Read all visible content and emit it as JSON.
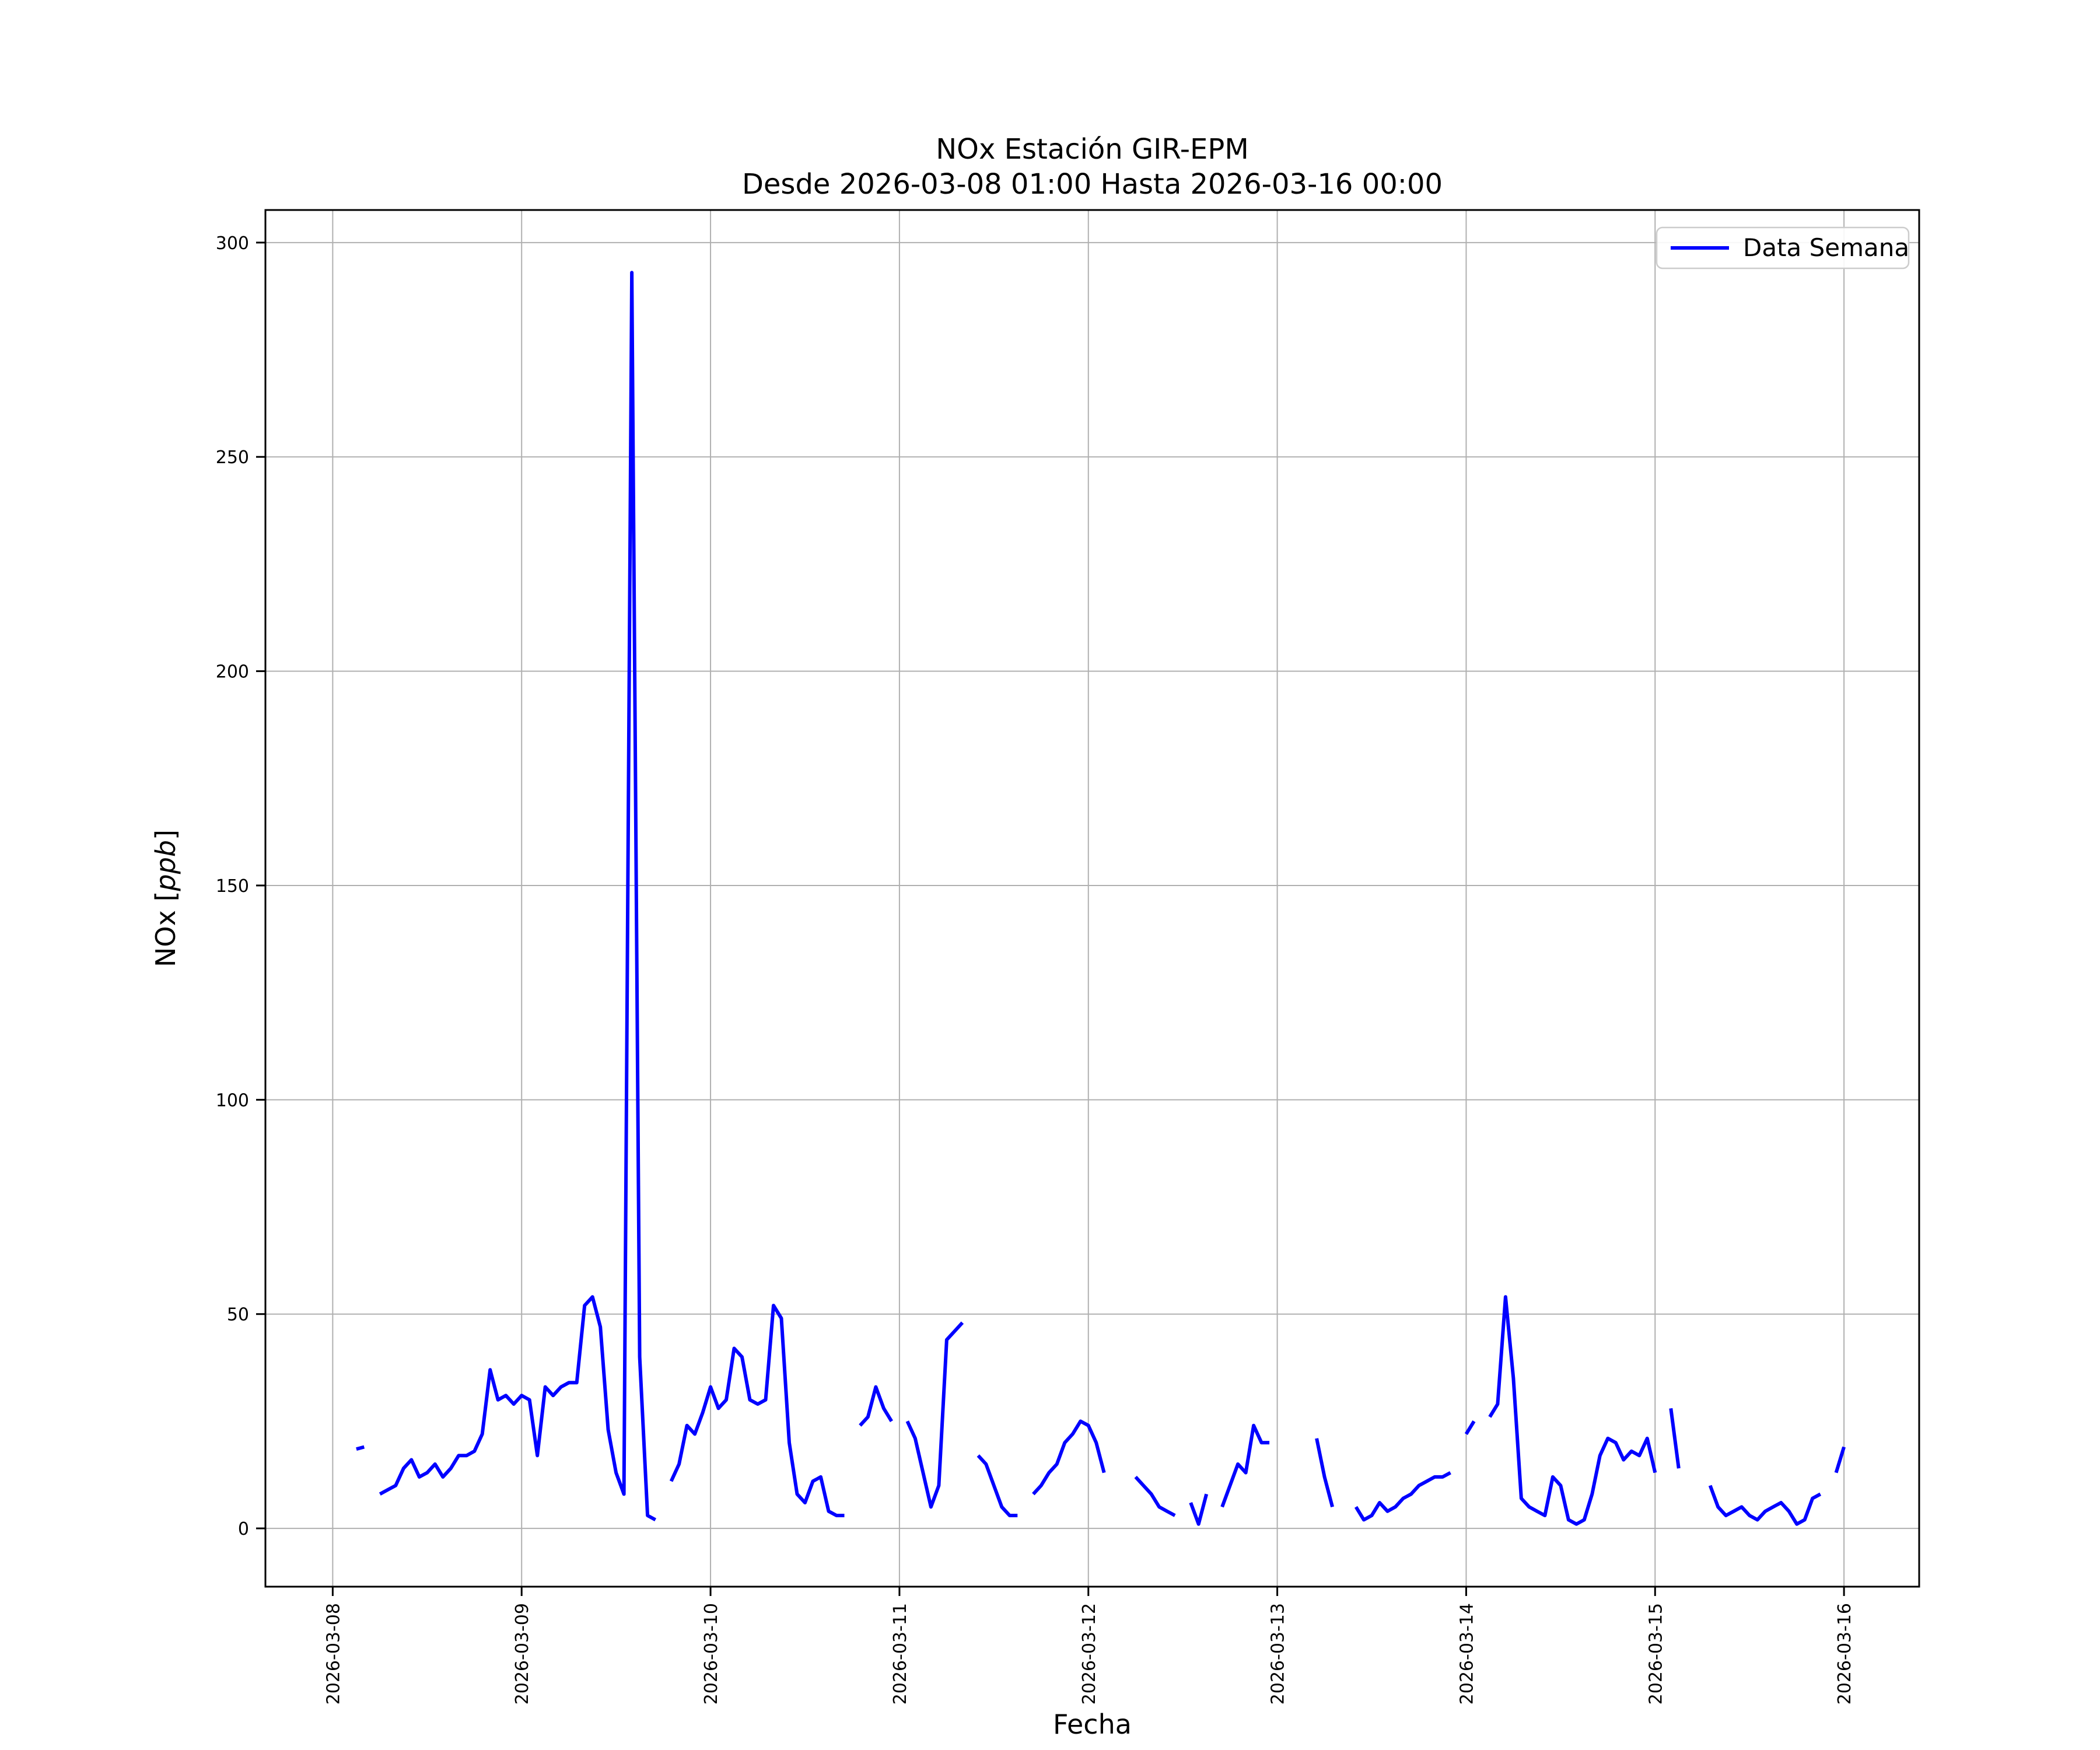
{
  "chart_data": {
    "type": "line",
    "title": "NOx Estación GIR-EPM",
    "subtitle": "Desde 2026-03-08 01:00 Hasta 2026-03-16 00:00",
    "xlabel": "Fecha",
    "ylabel_parts": {
      "prefix": "NOx [",
      "italic": "ppb",
      "suffix": "]"
    },
    "legend": {
      "label": "Data Semana",
      "position": "upper right"
    },
    "grid": true,
    "line_color": "#0000ff",
    "grid_color": "#b0b0b0",
    "x_tick_labels": [
      "2026-03-08",
      "2026-03-09",
      "2026-03-10",
      "2026-03-11",
      "2026-03-12",
      "2026-03-13",
      "2026-03-14",
      "2026-03-15",
      "2026-03-16"
    ],
    "x_tick_interval_hours": 24,
    "y_ticks": [
      0,
      50,
      100,
      150,
      200,
      250,
      300
    ],
    "ylim": [
      -13.6,
      307.6
    ],
    "xlim_hours": [
      -8.55,
      201.55
    ],
    "x_start_hour": 1,
    "x_start_label": "2026-03-08 01:00",
    "x_end_label": "2026-03-16 00:00",
    "x_step_hours": 1,
    "series": [
      {
        "name": "Data Semana",
        "color": "#0000ff",
        "values": [
          null,
          null,
          18.5,
          19,
          null,
          8,
          9,
          10,
          14,
          16,
          12,
          13,
          15,
          12,
          14,
          17,
          17,
          18,
          22,
          37,
          30,
          31,
          29,
          31,
          30,
          17,
          33,
          31,
          33,
          34,
          34,
          52,
          54,
          47,
          23,
          13,
          8,
          293,
          40,
          3,
          2,
          null,
          11,
          15,
          24,
          22,
          27,
          33,
          28,
          30,
          42,
          40,
          30,
          29,
          30,
          52,
          49,
          20,
          8,
          6,
          11,
          12,
          4,
          3,
          3,
          null,
          24,
          26,
          33,
          28,
          25,
          null,
          25,
          21,
          13,
          5,
          10,
          44,
          46,
          48,
          null,
          17,
          15,
          10,
          5,
          3,
          3,
          null,
          8,
          10,
          13,
          15,
          20,
          22,
          25,
          24,
          20,
          13,
          null,
          null,
          null,
          12,
          10,
          8,
          5,
          4,
          3,
          null,
          6,
          1,
          8,
          null,
          5,
          10,
          15,
          13,
          24,
          20,
          20,
          null,
          null,
          null,
          null,
          null,
          21,
          12,
          5,
          null,
          null,
          5,
          2,
          3,
          6,
          4,
          5,
          7,
          8,
          10,
          11,
          12,
          12,
          13,
          null,
          22,
          25,
          null,
          26,
          29,
          54,
          35,
          7,
          5,
          4,
          3,
          12,
          10,
          2,
          1,
          2,
          8,
          17,
          21,
          20,
          16,
          18,
          17,
          21,
          13,
          null,
          28,
          14,
          null,
          null,
          null,
          10,
          5,
          3,
          4,
          5,
          3,
          2,
          4,
          5,
          6,
          4,
          1,
          2,
          7,
          8,
          null,
          13,
          19
        ]
      }
    ]
  }
}
